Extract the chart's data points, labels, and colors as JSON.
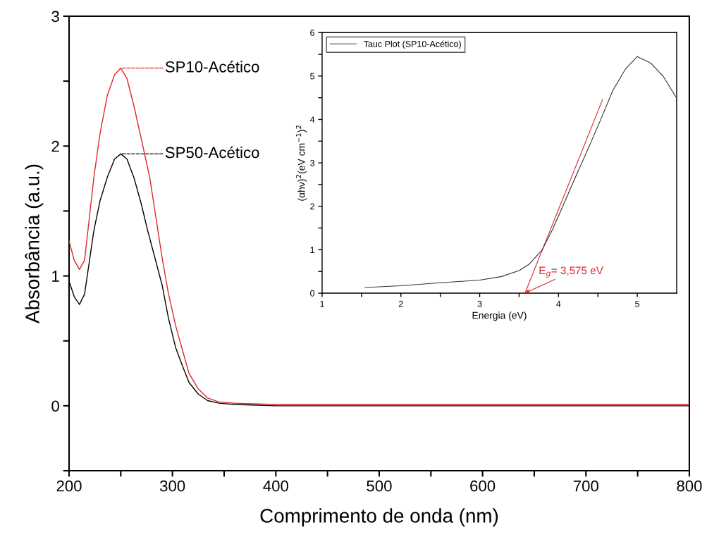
{
  "chart_data": [
    {
      "type": "line",
      "xlabel": "Comprimento de onda (nm)",
      "ylabel": "Absorbância (a.u.)",
      "xlim": [
        200,
        800
      ],
      "ylim": [
        -0.5,
        3
      ],
      "xticks": [
        200,
        {
          "value": 250,
          "label": null
        },
        300,
        {
          "value": 350,
          "label": null
        },
        400,
        {
          "value": 450,
          "label": null
        },
        500,
        {
          "value": 550,
          "label": null
        },
        600,
        {
          "value": 650,
          "label": null
        },
        700,
        {
          "value": 750,
          "label": null
        },
        800
      ],
      "yticks": [
        {
          "value": -0.5,
          "label": null
        },
        0,
        {
          "value": 0.5,
          "label": null
        },
        1,
        {
          "value": 1.5,
          "label": null
        },
        2,
        {
          "value": 2.5,
          "label": null
        },
        3
      ],
      "grid": false,
      "legend": "top left",
      "series": [
        {
          "name": "SP10-Acético",
          "color": "#e0262b",
          "x": [
            200,
            205,
            210,
            215,
            224,
            230,
            237,
            244,
            250,
            256,
            263,
            270,
            278,
            284,
            290,
            296,
            303,
            310,
            316,
            325,
            334,
            345,
            360,
            400,
            500,
            600,
            700,
            800
          ],
          "values": [
            1.27,
            1.12,
            1.05,
            1.12,
            1.76,
            2.1,
            2.39,
            2.55,
            2.6,
            2.52,
            2.3,
            2.05,
            1.76,
            1.45,
            1.14,
            0.87,
            0.62,
            0.42,
            0.25,
            0.13,
            0.06,
            0.03,
            0.02,
            0.01,
            0.01,
            0.01,
            0.01,
            0.01
          ]
        },
        {
          "name": "SP50-Acético",
          "color": "#000000",
          "x": [
            200,
            205,
            210,
            215,
            224,
            230,
            237,
            244,
            250,
            256,
            263,
            270,
            276,
            283,
            290,
            296,
            303,
            310,
            316,
            325,
            334,
            345,
            360,
            400,
            500,
            600,
            700,
            800
          ],
          "values": [
            0.96,
            0.84,
            0.78,
            0.86,
            1.35,
            1.58,
            1.76,
            1.9,
            1.94,
            1.9,
            1.75,
            1.55,
            1.35,
            1.14,
            0.93,
            0.68,
            0.45,
            0.3,
            0.18,
            0.09,
            0.04,
            0.02,
            0.01,
            0.0,
            0.0,
            0.0,
            0.0,
            0.0
          ]
        }
      ]
    },
    {
      "type": "line",
      "xlabel": "Energia (eV)",
      "ylabel": "(αhν)$^{2}$(eV cm$^{−1}$)$^{2}$",
      "xlim": [
        1,
        5.5
      ],
      "ylim": [
        0,
        6
      ],
      "xticks": [
        1,
        {
          "value": 1.5,
          "label": null
        },
        2,
        {
          "value": 2.5,
          "label": null
        },
        3,
        {
          "value": 3.5,
          "label": null
        },
        4,
        {
          "value": 4.5,
          "label": null
        },
        5
      ],
      "yticks": [
        0,
        {
          "value": 0.5,
          "label": null
        },
        1,
        {
          "value": 1.5,
          "label": null
        },
        2,
        {
          "value": 2.5,
          "label": null
        },
        3,
        {
          "value": 3.5,
          "label": null
        },
        4,
        {
          "value": 4.5,
          "label": null
        },
        5,
        {
          "value": 5.5,
          "label": null
        },
        6
      ],
      "grid": false,
      "legend": "top left",
      "annotations": [
        {
          "text": "E$_{g}$= 3,575 eV",
          "x": 3.575,
          "y": 0
        }
      ],
      "series": [
        {
          "name": "Tauc Plot (SP10-Acético)",
          "color": "#333333",
          "x": [
            1.545,
            2.0,
            2.5,
            3.0,
            3.27,
            3.5,
            3.63,
            3.79,
            3.92,
            4.04,
            4.2,
            4.37,
            4.53,
            4.69,
            4.85,
            5.0,
            5.17,
            5.33,
            5.5
          ],
          "values": [
            0.13,
            0.17,
            0.24,
            0.3,
            0.38,
            0.52,
            0.67,
            0.99,
            1.45,
            1.94,
            2.61,
            3.3,
            3.97,
            4.67,
            5.16,
            5.45,
            5.3,
            4.99,
            4.49
          ]
        },
        {
          "color": "#e0262b",
          "x": [
            3.575,
            4.56
          ],
          "values": [
            0,
            4.46
          ]
        }
      ]
    }
  ]
}
